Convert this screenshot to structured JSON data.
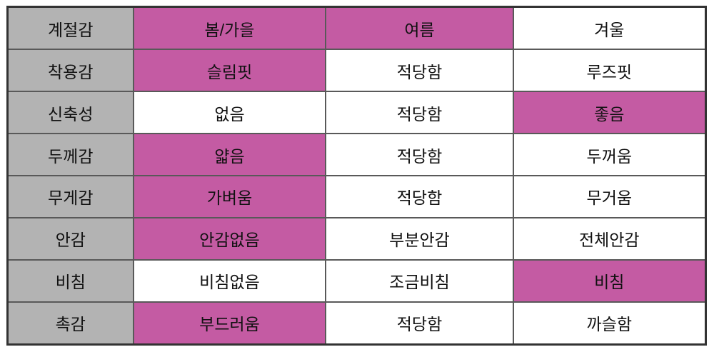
{
  "chart_data": {
    "type": "table",
    "columns": [
      "attribute-label",
      "option-1",
      "option-2",
      "option-3"
    ],
    "rows": [
      {
        "label": "계절감",
        "options": [
          "봄/가을",
          "여름",
          "겨울"
        ],
        "highlighted_options": [
          0,
          1
        ]
      },
      {
        "label": "착용감",
        "options": [
          "슬림핏",
          "적당함",
          "루즈핏"
        ],
        "highlighted_options": [
          0
        ]
      },
      {
        "label": "신축성",
        "options": [
          "없음",
          "적당함",
          "좋음"
        ],
        "highlighted_options": [
          2
        ]
      },
      {
        "label": "두께감",
        "options": [
          "얇음",
          "적당함",
          "두꺼움"
        ],
        "highlighted_options": [
          0
        ]
      },
      {
        "label": "무게감",
        "options": [
          "가벼움",
          "적당함",
          "무거움"
        ],
        "highlighted_options": [
          0
        ]
      },
      {
        "label": "안감",
        "options": [
          "안감없음",
          "부분안감",
          "전체안감"
        ],
        "highlighted_options": [
          0
        ]
      },
      {
        "label": "비침",
        "options": [
          "비침없음",
          "조금비침",
          "비침"
        ],
        "highlighted_options": [
          2
        ]
      },
      {
        "label": "촉감",
        "options": [
          "부드러움",
          "적당함",
          "까슬함"
        ],
        "highlighted_options": [
          0
        ]
      }
    ],
    "colors": {
      "highlight": "#c45ba3",
      "label_background": "#b3b3b3",
      "cell_background": "#ffffff",
      "grid_border": "#595959",
      "outer_border": "#333333",
      "text": "#111111"
    },
    "layout": {
      "column_width_percents": [
        18,
        27.6,
        26.8,
        27.6
      ],
      "row_count": 8,
      "grid": "on",
      "legend": "none"
    }
  }
}
